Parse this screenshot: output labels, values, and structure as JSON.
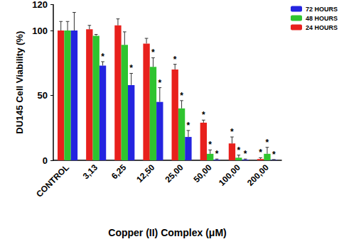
{
  "chart_data": {
    "type": "bar",
    "x_label": "Copper (II) Complex (μM)",
    "y_label": "DU145 Cell Viability (%)",
    "annotation": "*",
    "categories": [
      "CONTROL",
      "3,13",
      "6,25",
      "12,50",
      "25,00",
      "50,00",
      "100,00",
      "200,00"
    ],
    "series": [
      {
        "name": "24 HOURS",
        "color": "#e8201c",
        "values": [
          100,
          101,
          104,
          90,
          70,
          29,
          13,
          1
        ],
        "errors": [
          7,
          3,
          5,
          4,
          4,
          2,
          5,
          1
        ],
        "significant": [
          false,
          false,
          false,
          false,
          true,
          true,
          true,
          true
        ]
      },
      {
        "name": "48 HOURS",
        "color": "#2fc42f",
        "values": [
          100,
          96,
          89,
          72,
          40,
          5,
          2,
          5
        ],
        "errors": [
          7,
          1,
          10,
          7,
          6,
          3,
          2,
          5
        ],
        "significant": [
          false,
          false,
          false,
          true,
          true,
          true,
          true,
          true
        ]
      },
      {
        "name": "72 HOURS",
        "color": "#2424e0",
        "values": [
          100,
          73,
          58,
          45,
          18,
          0.5,
          0.5,
          0.3
        ],
        "errors": [
          14,
          3,
          9,
          11,
          5,
          0.5,
          0.5,
          0.3
        ],
        "significant": [
          false,
          true,
          true,
          true,
          true,
          true,
          true,
          true
        ]
      }
    ],
    "ylim": [
      0,
      120
    ],
    "yticks": [
      0,
      50,
      100
    ],
    "grid": false,
    "legend": "top-right"
  }
}
